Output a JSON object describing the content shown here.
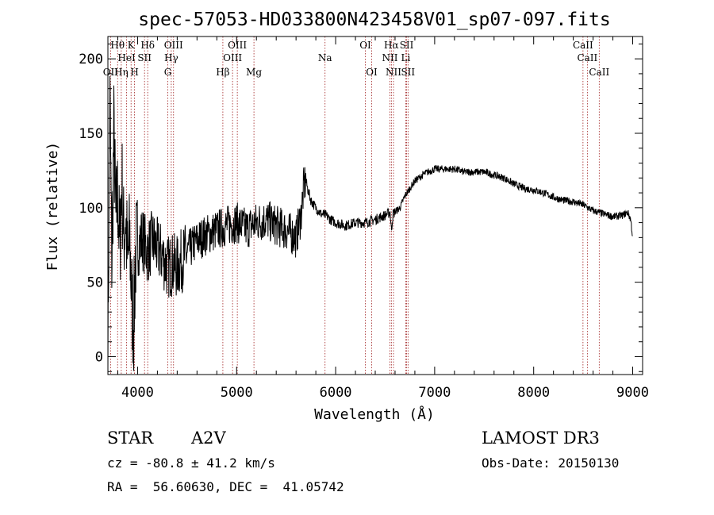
{
  "chart_data": {
    "type": "line",
    "title": "spec-57053-HD033800N423458V01_sp07-097.fits",
    "xlabel": "Wavelength (Å)",
    "ylabel": "Flux (relative)",
    "xlim": [
      3700,
      9100
    ],
    "ylim": [
      -12,
      215
    ],
    "xticks": [
      4000,
      5000,
      6000,
      7000,
      8000,
      9000
    ],
    "yticks": [
      0,
      50,
      100,
      150,
      200
    ],
    "series": [
      {
        "name": "spectrum",
        "x": [
          3700,
          3720,
          3740,
          3760,
          3780,
          3800,
          3820,
          3840,
          3860,
          3880,
          3900,
          3920,
          3940,
          3960,
          3980,
          4000,
          4050,
          4100,
          4150,
          4200,
          4250,
          4300,
          4350,
          4400,
          4450,
          4500,
          4600,
          4700,
          4800,
          4900,
          5000,
          5100,
          5200,
          5300,
          5400,
          5500,
          5600,
          5650,
          5680,
          5700,
          5720,
          5750,
          5800,
          5850,
          5900,
          5950,
          6000,
          6100,
          6200,
          6300,
          6400,
          6500,
          6550,
          6563,
          6580,
          6650,
          6700,
          6800,
          6900,
          7000,
          7100,
          7200,
          7300,
          7400,
          7500,
          7600,
          7700,
          7800,
          7900,
          8000,
          8100,
          8200,
          8300,
          8400,
          8500,
          8600,
          8700,
          8800,
          8900,
          8950,
          8980,
          9000
        ],
        "y": [
          0,
          175,
          60,
          150,
          90,
          110,
          70,
          120,
          80,
          95,
          60,
          80,
          40,
          20,
          70,
          75,
          80,
          70,
          78,
          72,
          68,
          60,
          62,
          60,
          65,
          70,
          78,
          82,
          85,
          88,
          90,
          86,
          90,
          92,
          88,
          85,
          80,
          95,
          115,
          118,
          112,
          105,
          100,
          96,
          95,
          92,
          90,
          88,
          90,
          90,
          92,
          95,
          97,
          85,
          96,
          100,
          108,
          118,
          123,
          126,
          126,
          126,
          124,
          124,
          124,
          122,
          120,
          116,
          113,
          112,
          110,
          107,
          105,
          104,
          102,
          98,
          96,
          94,
          95,
          97,
          92,
          80
        ]
      }
    ],
    "spectral_lines": [
      {
        "label": "OII",
        "x": 3727,
        "row": 3
      },
      {
        "label": "Hθ",
        "x": 3798,
        "row": 1
      },
      {
        "label": "K",
        "x": 3934,
        "row": 1
      },
      {
        "label": "HeI",
        "x": 3889,
        "row": 2
      },
      {
        "label": "Hη",
        "x": 3835,
        "row": 3
      },
      {
        "label": "H",
        "x": 3969,
        "row": 3
      },
      {
        "label": "SII",
        "x": 4070,
        "row": 2
      },
      {
        "label": "Hδ",
        "x": 4102,
        "row": 1
      },
      {
        "label": "OIII",
        "x": 4363,
        "row": 1
      },
      {
        "label": "Hγ",
        "x": 4340,
        "row": 2
      },
      {
        "label": "G",
        "x": 4305,
        "row": 3
      },
      {
        "label": "OIII",
        "x": 5007,
        "row": 1
      },
      {
        "label": "OIII",
        "x": 4959,
        "row": 2
      },
      {
        "label": "Hβ",
        "x": 4861,
        "row": 3
      },
      {
        "label": "Mg",
        "x": 5175,
        "row": 3
      },
      {
        "label": "Na",
        "x": 5893,
        "row": 2
      },
      {
        "label": "OI",
        "x": 6300,
        "row": 1
      },
      {
        "label": "OI",
        "x": 6364,
        "row": 3
      },
      {
        "label": "Hα",
        "x": 6563,
        "row": 1
      },
      {
        "label": "NII",
        "x": 6548,
        "row": 2
      },
      {
        "label": "NII",
        "x": 6584,
        "row": 3
      },
      {
        "label": "SII",
        "x": 6717,
        "row": 1
      },
      {
        "label": "Li",
        "x": 6708,
        "row": 2
      },
      {
        "label": "SII",
        "x": 6731,
        "row": 3
      },
      {
        "label": "CaII",
        "x": 8498,
        "row": 1
      },
      {
        "label": "CaII",
        "x": 8542,
        "row": 2
      },
      {
        "label": "CaII",
        "x": 8662,
        "row": 3
      }
    ]
  },
  "info": {
    "object_class": "STAR",
    "subclass": "A2V",
    "survey": "LAMOST DR3",
    "redshift": "cz = -80.8 ± 41.2 km/s",
    "obs_date": "Obs-Date: 20150130",
    "coordinates": "RA =  56.60630, DEC =  41.05742"
  },
  "colors": {
    "line": "#000000",
    "marker": "#a02020",
    "axis": "#000000"
  }
}
